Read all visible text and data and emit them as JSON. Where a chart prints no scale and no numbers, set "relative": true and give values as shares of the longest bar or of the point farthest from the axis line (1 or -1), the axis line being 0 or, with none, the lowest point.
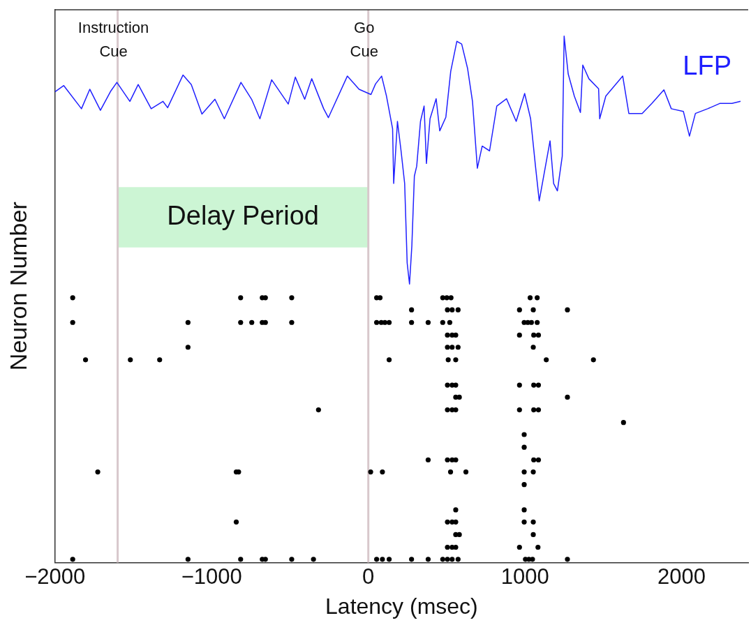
{
  "chart_data": {
    "type": "scatter",
    "relative": true,
    "xlabel": "Latency (msec)",
    "ylabel": "Neuron Number",
    "xlim": [
      -2000,
      2425
    ],
    "xticks": [
      -2000,
      -1000,
      0,
      1000,
      2000
    ],
    "grid": false,
    "legend": false,
    "marker": "circle",
    "ref_lines": [
      {
        "axis": "x",
        "value": -1600,
        "label": "Instruction Cue",
        "color": "#d8c8cc"
      },
      {
        "axis": "x",
        "value": 0,
        "label": "Go Cue",
        "color": "#d8c8cc"
      }
    ],
    "bands": [
      {
        "axis": "x",
        "from": -1600,
        "to": 0,
        "label": "Delay Period",
        "color": "#ccf5d4"
      }
    ],
    "series": [
      {
        "name": "LFP",
        "type": "line",
        "marker": "none",
        "color": "#2020ff",
        "x": [
          -2000,
          -1944,
          -1831,
          -1778,
          -1710,
          -1643,
          -1605,
          -1522,
          -1469,
          -1386,
          -1311,
          -1281,
          -1183,
          -1130,
          -1062,
          -979,
          -919,
          -813,
          -745,
          -692,
          -617,
          -511,
          -466,
          -406,
          -361,
          -285,
          -255,
          -134,
          -59,
          17,
          46,
          85,
          116,
          155,
          162,
          186,
          209,
          232,
          248,
          263,
          278,
          294,
          309,
          333,
          356,
          371,
          394,
          433,
          456,
          495,
          526,
          565,
          596,
          634,
          665,
          696,
          727,
          774,
          820,
          882,
          944,
          998,
          1036,
          1067,
          1091,
          1160,
          1183,
          1207,
          1238,
          1250,
          1276,
          1315,
          1354,
          1369,
          1408,
          1470,
          1477,
          1516,
          1624,
          1663,
          1748,
          1810,
          1887,
          1934,
          2011,
          2050,
          2088,
          2166,
          2243,
          2321,
          2376
        ],
        "values": [
          0.894,
          0.906,
          0.862,
          0.899,
          0.859,
          0.896,
          0.912,
          0.876,
          0.908,
          0.862,
          0.876,
          0.864,
          0.926,
          0.908,
          0.852,
          0.88,
          0.843,
          0.912,
          0.88,
          0.843,
          0.917,
          0.871,
          0.922,
          0.88,
          0.919,
          0.862,
          0.845,
          0.924,
          0.899,
          0.889,
          0.909,
          0.924,
          0.886,
          0.824,
          0.72,
          0.838,
          0.782,
          0.72,
          0.569,
          0.529,
          0.602,
          0.734,
          0.753,
          0.838,
          0.867,
          0.758,
          0.843,
          0.881,
          0.82,
          0.846,
          0.933,
          0.99,
          0.985,
          0.938,
          0.876,
          0.749,
          0.791,
          0.782,
          0.867,
          0.881,
          0.838,
          0.891,
          0.843,
          0.753,
          0.687,
          0.801,
          0.72,
          0.706,
          0.772,
          1,
          0.928,
          0.886,
          0.855,
          0.945,
          0.919,
          0.9,
          0.843,
          0.886,
          0.924,
          0.853,
          0.853,
          0.872,
          0.898,
          0.862,
          0.857,
          0.81,
          0.853,
          0.862,
          0.872,
          0.872,
          0.876
        ]
      },
      {
        "type": "scatter",
        "color": "#000000",
        "x": [
          -1887,
          -815,
          -677,
          -657,
          -489,
          53,
          75,
          475,
          501,
          528,
          1033,
          1078,
          276,
          505,
          535,
          573,
          965,
          1053,
          1271,
          -1887,
          -1151,
          -815,
          -744,
          -677,
          -657,
          -489,
          53,
          83,
          106,
          133,
          276,
          382,
          475,
          520,
          995,
          1018,
          1041,
          1078,
          505,
          535,
          558,
          965,
          1056,
          1086,
          -1151,
          505,
          535,
          573,
          1053,
          -1805,
          -1519,
          -1332,
          133,
          510,
          558,
          1136,
          1437,
          505,
          535,
          558,
          965,
          1056,
          1086,
          558,
          581,
          1271,
          -318,
          505,
          535,
          558,
          965,
          1056,
          1086,
          1629,
          995,
          995,
          382,
          505,
          535,
          558,
          1056,
          1086,
          -1727,
          -843,
          -828,
          15,
          90,
          525,
          623,
          995,
          1053,
          995,
          558,
          995,
          -843,
          505,
          535,
          558,
          995,
          1053,
          558,
          581,
          1053,
          505,
          535,
          558,
          965,
          1083,
          -1887,
          -1151,
          -815,
          -677,
          -657,
          -489,
          -350,
          53,
          90,
          133,
          276,
          382,
          475,
          505,
          535,
          573,
          1003,
          1025,
          1048,
          1271
        ],
        "values": [
          0.503,
          0.503,
          0.503,
          0.503,
          0.503,
          0.503,
          0.503,
          0.503,
          0.503,
          0.503,
          0.503,
          0.503,
          0.48,
          0.48,
          0.48,
          0.48,
          0.48,
          0.48,
          0.48,
          0.456,
          0.456,
          0.456,
          0.456,
          0.456,
          0.456,
          0.456,
          0.456,
          0.456,
          0.456,
          0.456,
          0.456,
          0.456,
          0.456,
          0.456,
          0.456,
          0.456,
          0.456,
          0.456,
          0.432,
          0.432,
          0.432,
          0.432,
          0.432,
          0.432,
          0.409,
          0.409,
          0.409,
          0.409,
          0.409,
          0.385,
          0.385,
          0.385,
          0.385,
          0.385,
          0.385,
          0.385,
          0.385,
          0.337,
          0.337,
          0.337,
          0.337,
          0.337,
          0.337,
          0.314,
          0.314,
          0.314,
          0.29,
          0.29,
          0.29,
          0.29,
          0.29,
          0.29,
          0.29,
          0.266,
          0.243,
          0.219,
          0.195,
          0.195,
          0.195,
          0.195,
          0.195,
          0.195,
          0.172,
          0.172,
          0.172,
          0.172,
          0.172,
          0.172,
          0.172,
          0.172,
          0.172,
          0.148,
          0.1,
          0.1,
          0.077,
          0.077,
          0.077,
          0.077,
          0.077,
          0.077,
          0.053,
          0.053,
          0.053,
          0.029,
          0.029,
          0.029,
          0.029,
          0.029,
          0.006,
          0.006,
          0.006,
          0.006,
          0.006,
          0.006,
          0.006,
          0.006,
          0.006,
          0.006,
          0.006,
          0.006,
          0.006,
          0.006,
          0.006,
          0.006,
          0.006,
          0.006,
          0.006,
          0.006
        ]
      }
    ]
  }
}
